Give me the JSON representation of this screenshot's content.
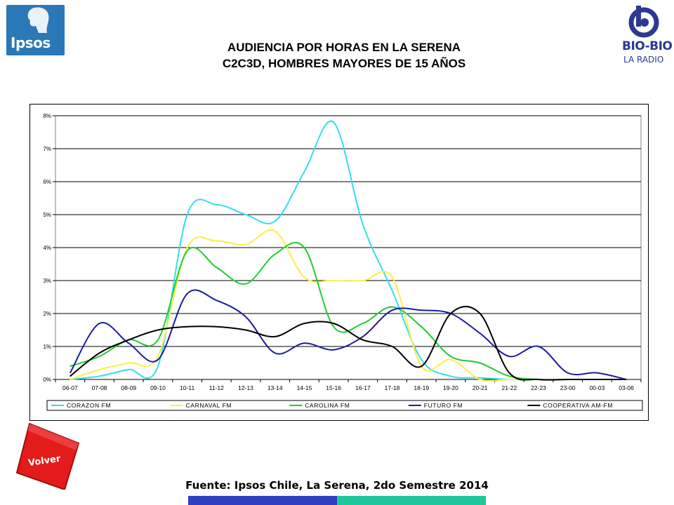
{
  "header": {
    "title_line1": "AUDIENCIA POR HORAS EN LA SERENA",
    "title_line2": "C2C3D, HOMBRES MAYORES DE 15 AÑOS"
  },
  "logos": {
    "left": "Ipsos",
    "right_name": "BIO-BIO",
    "right_sub": "LA RADIO"
  },
  "buttons": {
    "volver": "Volver"
  },
  "footer": {
    "source": "Fuente: Ipsos Chile, La Serena, 2do Semestre 2014"
  },
  "colors": {
    "ipsos_blue": "#2a78b8",
    "volver_red": "#e31b1b",
    "footer_blue": "#2e3fbf",
    "footer_green": "#1fc79a"
  },
  "chart_data": {
    "type": "line",
    "title": "",
    "xlabel": "",
    "ylabel": "",
    "ylim": [
      0,
      8
    ],
    "y_ticks": [
      "0%",
      "1%",
      "2%",
      "3%",
      "4%",
      "5%",
      "6%",
      "7%",
      "8%"
    ],
    "grid": true,
    "legend_position": "bottom",
    "categories": [
      "06-07",
      "07-08",
      "08-09",
      "09-10",
      "10-11",
      "11-12",
      "12-13",
      "13-14",
      "14-15",
      "15-16",
      "16-17",
      "17-18",
      "18-19",
      "19-20",
      "20-21",
      "21-22",
      "22-23",
      "23-00",
      "00-03",
      "03-06"
    ],
    "series": [
      {
        "name": "CORAZON FM",
        "color": "#33ddee",
        "values": [
          0.0,
          0.1,
          0.3,
          0.4,
          5.0,
          5.3,
          5.0,
          4.8,
          6.3,
          7.8,
          4.7,
          2.7,
          0.6,
          0.1,
          0.05,
          0.0,
          0.0,
          0.0,
          0.0,
          0.0
        ]
      },
      {
        "name": "CARNAVAL FM",
        "color": "#ffee44",
        "values": [
          0.0,
          0.3,
          0.5,
          0.7,
          4.0,
          4.2,
          4.1,
          4.5,
          3.1,
          3.0,
          3.0,
          3.1,
          0.4,
          0.6,
          0.0,
          0.0,
          0.0,
          0.0,
          0.0,
          0.0
        ]
      },
      {
        "name": "CAROLINA FM",
        "color": "#22cc33",
        "values": [
          0.4,
          0.7,
          1.2,
          1.2,
          3.9,
          3.4,
          2.9,
          3.8,
          4.0,
          1.6,
          1.7,
          2.2,
          1.6,
          0.7,
          0.5,
          0.1,
          0.0,
          0.0,
          0.0,
          0.0
        ]
      },
      {
        "name": "FUTURO FM",
        "color": "#1c1c99",
        "values": [
          0.2,
          1.7,
          1.1,
          0.6,
          2.6,
          2.4,
          1.9,
          0.8,
          1.1,
          0.9,
          1.3,
          2.1,
          2.1,
          2.0,
          1.4,
          0.7,
          1.0,
          0.2,
          0.2,
          0.0
        ]
      },
      {
        "name": "COOPERATIVA AM-FM",
        "color": "#000000",
        "values": [
          0.1,
          0.8,
          1.2,
          1.5,
          1.6,
          1.6,
          1.5,
          1.3,
          1.7,
          1.7,
          1.2,
          1.0,
          0.4,
          2.0,
          2.0,
          0.2,
          0.0,
          0.0,
          0.0,
          0.0
        ]
      }
    ]
  }
}
